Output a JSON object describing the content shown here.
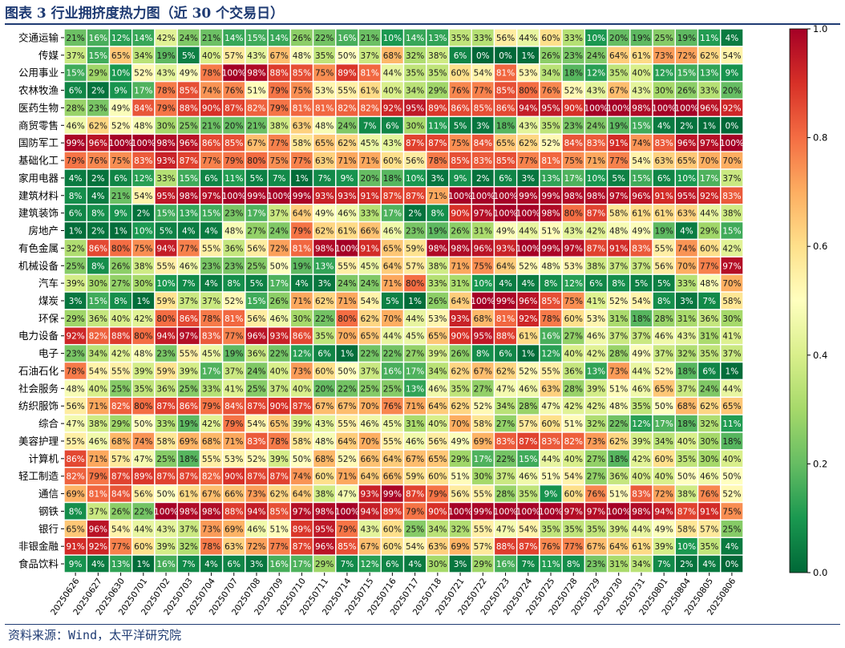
{
  "figure": {
    "title": "图表 3 行业拥挤度热力图（近 30 个交易日）",
    "source": "资料来源：Wind，太平洋研究院"
  },
  "colors": {
    "title": "#1f3b73",
    "cell_border": "#ffffff",
    "colormap": "RdYlGn_r"
  },
  "chart_data": {
    "type": "heatmap",
    "value_format": "percent",
    "colormap": "RdYlGn_r",
    "vmin": 0,
    "vmax": 1,
    "colorbar_ticks": [
      "0.0",
      "0.2",
      "0.4",
      "0.6",
      "0.8",
      "1.0"
    ],
    "colorbar_values": [
      0,
      0.2,
      0.4,
      0.6,
      0.8,
      1.0
    ],
    "x": [
      "20250626",
      "20250627",
      "20250630",
      "20250701",
      "20250702",
      "20250703",
      "20250704",
      "20250707",
      "20250708",
      "20250709",
      "20250710",
      "20250711",
      "20250714",
      "20250715",
      "20250716",
      "20250717",
      "20250718",
      "20250721",
      "20250722",
      "20250723",
      "20250724",
      "20250725",
      "20250728",
      "20250729",
      "20250730",
      "20250731",
      "20250801",
      "20250804",
      "20250805",
      "20250806"
    ],
    "y": [
      "交通运输",
      "传媒",
      "公用事业",
      "农林牧渔",
      "医药生物",
      "商贸零售",
      "国防军工",
      "基础化工",
      "家用电器",
      "建筑材料",
      "建筑装饰",
      "房地产",
      "有色金属",
      "机械设备",
      "汽车",
      "煤炭",
      "环保",
      "电力设备",
      "电子",
      "石油石化",
      "社会服务",
      "纺织服饰",
      "综合",
      "美容护理",
      "计算机",
      "轻工制造",
      "通信",
      "钢铁",
      "银行",
      "非银金融",
      "食品饮料"
    ],
    "values": [
      [
        21,
        16,
        12,
        14,
        42,
        24,
        21,
        14,
        15,
        14,
        26,
        22,
        16,
        21,
        10,
        14,
        13,
        35,
        33,
        56,
        44,
        60,
        33,
        10,
        20,
        19,
        25,
        19,
        11,
        4
      ],
      [
        37,
        15,
        65,
        34,
        19,
        5,
        40,
        57,
        43,
        67,
        48,
        35,
        50,
        37,
        68,
        32,
        38,
        6,
        0,
        0,
        1,
        26,
        23,
        24,
        64,
        61,
        73,
        72,
        62,
        54
      ],
      [
        15,
        29,
        10,
        52,
        43,
        49,
        78,
        100,
        98,
        88,
        85,
        75,
        89,
        81,
        44,
        35,
        35,
        60,
        54,
        81,
        53,
        34,
        18,
        12,
        35,
        40,
        12,
        15,
        13,
        9
      ],
      [
        6,
        2,
        9,
        17,
        78,
        85,
        74,
        76,
        51,
        79,
        75,
        53,
        55,
        61,
        40,
        34,
        29,
        76,
        77,
        85,
        80,
        76,
        52,
        43,
        67,
        43,
        30,
        26,
        33,
        20
      ],
      [
        28,
        23,
        49,
        84,
        79,
        88,
        90,
        87,
        82,
        79,
        81,
        81,
        82,
        82,
        92,
        95,
        89,
        86,
        85,
        86,
        94,
        95,
        90,
        100,
        100,
        98,
        100,
        100,
        96,
        92
      ],
      [
        46,
        62,
        52,
        48,
        30,
        25,
        21,
        20,
        21,
        38,
        63,
        48,
        24,
        7,
        6,
        30,
        11,
        5,
        3,
        18,
        43,
        35,
        23,
        24,
        19,
        15,
        4,
        2,
        1,
        0
      ],
      [
        99,
        96,
        100,
        100,
        98,
        96,
        86,
        85,
        67,
        77,
        58,
        65,
        62,
        45,
        43,
        87,
        87,
        75,
        84,
        65,
        62,
        52,
        84,
        83,
        91,
        74,
        83,
        96,
        97,
        100
      ],
      [
        79,
        76,
        75,
        83,
        93,
        87,
        77,
        79,
        80,
        75,
        77,
        63,
        71,
        71,
        60,
        56,
        78,
        85,
        83,
        85,
        77,
        81,
        75,
        71,
        77,
        54,
        63,
        65,
        70,
        70
      ],
      [
        4,
        2,
        6,
        12,
        33,
        15,
        6,
        11,
        5,
        7,
        1,
        7,
        9,
        20,
        18,
        10,
        3,
        9,
        2,
        6,
        3,
        13,
        17,
        10,
        5,
        15,
        6,
        10,
        17,
        37
      ],
      [
        8,
        4,
        21,
        54,
        95,
        98,
        97,
        100,
        99,
        100,
        99,
        93,
        93,
        91,
        87,
        87,
        71,
        100,
        100,
        100,
        99,
        99,
        98,
        98,
        97,
        96,
        91,
        95,
        92,
        83
      ],
      [
        6,
        8,
        9,
        2,
        15,
        13,
        15,
        23,
        17,
        37,
        64,
        49,
        46,
        33,
        17,
        2,
        8,
        90,
        97,
        100,
        100,
        98,
        80,
        87,
        58,
        61,
        61,
        63,
        44,
        38
      ],
      [
        1,
        2,
        1,
        10,
        5,
        4,
        4,
        48,
        27,
        24,
        79,
        62,
        61,
        66,
        46,
        23,
        19,
        26,
        31,
        49,
        44,
        51,
        43,
        42,
        48,
        49,
        19,
        4,
        29,
        15
      ],
      [
        32,
        86,
        80,
        75,
        94,
        77,
        55,
        36,
        56,
        72,
        81,
        98,
        100,
        91,
        65,
        59,
        98,
        98,
        96,
        93,
        100,
        99,
        97,
        87,
        91,
        83,
        55,
        74,
        60,
        42
      ],
      [
        25,
        8,
        26,
        38,
        55,
        46,
        23,
        23,
        25,
        50,
        19,
        13,
        55,
        45,
        64,
        57,
        38,
        71,
        75,
        64,
        52,
        48,
        53,
        38,
        37,
        37,
        56,
        70,
        77,
        97
      ],
      [
        39,
        30,
        27,
        30,
        10,
        7,
        4,
        8,
        5,
        17,
        4,
        3,
        24,
        24,
        71,
        80,
        33,
        31,
        10,
        4,
        4,
        8,
        12,
        6,
        8,
        5,
        5,
        33,
        48,
        70
      ],
      [
        3,
        15,
        8,
        1,
        59,
        37,
        37,
        52,
        15,
        26,
        71,
        62,
        71,
        54,
        5,
        1,
        26,
        64,
        100,
        99,
        96,
        85,
        75,
        41,
        52,
        54,
        8,
        3,
        7,
        58
      ],
      [
        29,
        36,
        40,
        42,
        80,
        86,
        78,
        81,
        56,
        46,
        30,
        22,
        80,
        62,
        70,
        44,
        53,
        93,
        68,
        81,
        92,
        78,
        60,
        53,
        31,
        18,
        28,
        31,
        36,
        30
      ],
      [
        92,
        82,
        88,
        80,
        94,
        97,
        83,
        77,
        96,
        93,
        86,
        35,
        70,
        65,
        44,
        45,
        65,
        90,
        95,
        88,
        61,
        16,
        27,
        46,
        37,
        37,
        46,
        43,
        31,
        41
      ],
      [
        23,
        34,
        42,
        48,
        23,
        55,
        45,
        19,
        36,
        22,
        12,
        6,
        1,
        22,
        22,
        27,
        39,
        26,
        8,
        6,
        1,
        12,
        40,
        42,
        28,
        49,
        37,
        32,
        35,
        37
      ],
      [
        78,
        54,
        55,
        39,
        59,
        39,
        17,
        37,
        24,
        40,
        73,
        60,
        50,
        37,
        16,
        17,
        34,
        62,
        67,
        62,
        52,
        55,
        36,
        13,
        73,
        44,
        52,
        18,
        6,
        1
      ],
      [
        48,
        40,
        25,
        35,
        36,
        25,
        33,
        41,
        25,
        37,
        40,
        20,
        22,
        25,
        25,
        13,
        46,
        35,
        27,
        47,
        46,
        63,
        28,
        39,
        51,
        46,
        65,
        37,
        24,
        44
      ],
      [
        56,
        71,
        82,
        80,
        87,
        86,
        79,
        84,
        87,
        90,
        87,
        67,
        67,
        70,
        76,
        71,
        64,
        62,
        52,
        34,
        28,
        47,
        42,
        42,
        48,
        35,
        50,
        68,
        62,
        65
      ],
      [
        47,
        38,
        29,
        50,
        33,
        19,
        42,
        79,
        54,
        65,
        39,
        43,
        55,
        46,
        45,
        31,
        40,
        70,
        58,
        27,
        57,
        60,
        51,
        32,
        22,
        12,
        17,
        18,
        32,
        11
      ],
      [
        55,
        46,
        68,
        74,
        58,
        69,
        68,
        71,
        83,
        78,
        58,
        48,
        64,
        70,
        55,
        46,
        56,
        49,
        69,
        83,
        87,
        83,
        82,
        73,
        62,
        39,
        34,
        40,
        30,
        18
      ],
      [
        86,
        71,
        57,
        47,
        25,
        18,
        55,
        53,
        52,
        39,
        50,
        68,
        52,
        66,
        64,
        67,
        65,
        29,
        17,
        22,
        15,
        44,
        40,
        27,
        18,
        42,
        60,
        35,
        30,
        40
      ],
      [
        82,
        79,
        87,
        89,
        87,
        87,
        82,
        90,
        87,
        87,
        74,
        60,
        71,
        64,
        66,
        59,
        60,
        51,
        30,
        37,
        46,
        51,
        54,
        27,
        36,
        40,
        40,
        50,
        46,
        50
      ],
      [
        69,
        81,
        84,
        56,
        50,
        61,
        67,
        66,
        73,
        62,
        64,
        38,
        47,
        93,
        99,
        87,
        79,
        56,
        55,
        28,
        35,
        9,
        60,
        76,
        51,
        83,
        72,
        38,
        76,
        52
      ],
      [
        8,
        37,
        26,
        22,
        100,
        98,
        98,
        88,
        94,
        85,
        97,
        98,
        100,
        94,
        89,
        79,
        90,
        100,
        99,
        100,
        100,
        100,
        97,
        97,
        100,
        98,
        94,
        87,
        91,
        75
      ],
      [
        65,
        96,
        54,
        44,
        43,
        37,
        73,
        69,
        46,
        51,
        89,
        95,
        79,
        43,
        60,
        25,
        34,
        32,
        55,
        47,
        54,
        35,
        35,
        35,
        39,
        44,
        49,
        58,
        57,
        25
      ],
      [
        91,
        92,
        77,
        60,
        39,
        32,
        78,
        63,
        72,
        77,
        87,
        96,
        85,
        67,
        60,
        54,
        63,
        69,
        57,
        88,
        87,
        76,
        77,
        67,
        64,
        61,
        39,
        10,
        35,
        4
      ],
      [
        9,
        4,
        13,
        1,
        16,
        7,
        4,
        6,
        3,
        16,
        17,
        29,
        7,
        12,
        6,
        4,
        30,
        3,
        29,
        16,
        7,
        11,
        8,
        23,
        31,
        34,
        7,
        2,
        4,
        0
      ]
    ]
  }
}
